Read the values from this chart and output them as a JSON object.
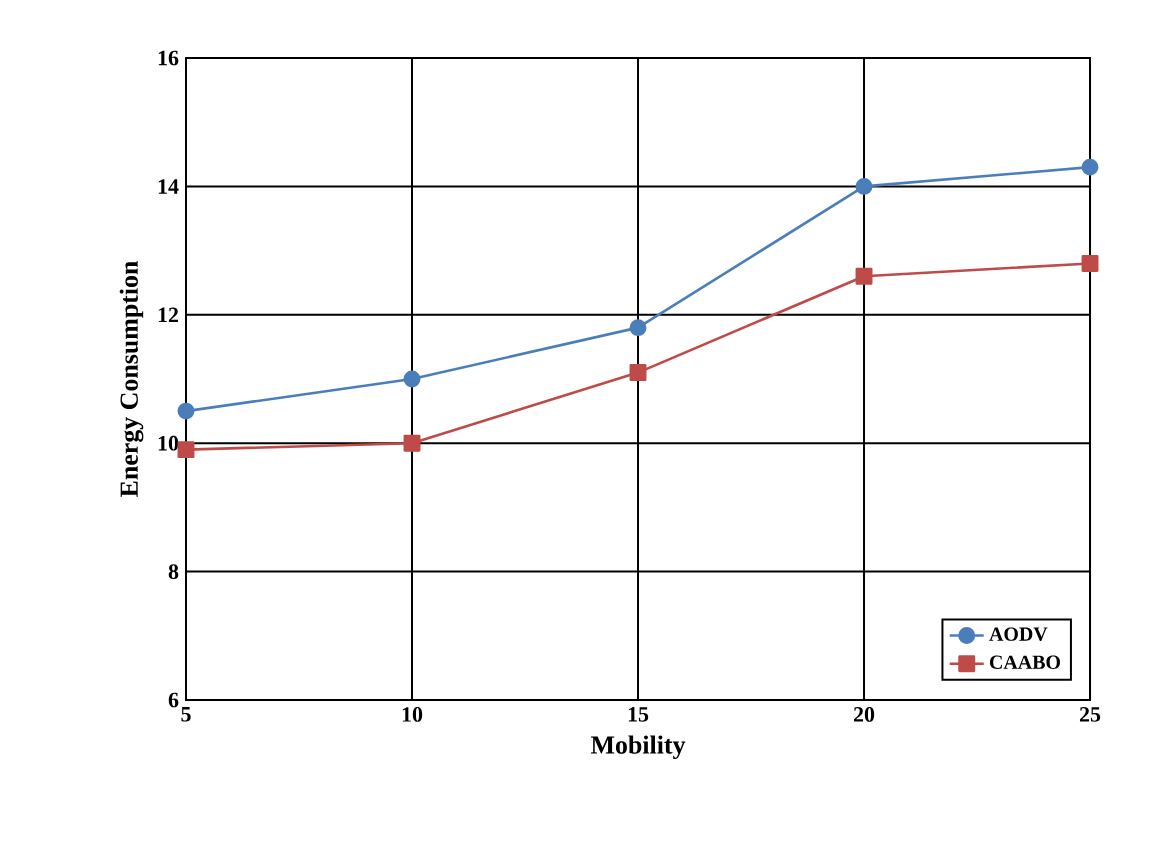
{
  "chart_data": {
    "type": "line",
    "xlabel": "Mobility",
    "ylabel": "Energy Consumption",
    "x": [
      5,
      10,
      15,
      20,
      25
    ],
    "series": [
      {
        "name": "AODV",
        "color": "#4a7ebb",
        "marker": "circle",
        "values": [
          10.5,
          11.0,
          11.8,
          14.0,
          14.3
        ]
      },
      {
        "name": "CAABO",
        "color": "#be4b48",
        "marker": "square",
        "values": [
          9.9,
          10.0,
          11.1,
          12.6,
          12.8
        ]
      }
    ],
    "xlim": [
      5,
      25
    ],
    "xticks": [
      5,
      10,
      15,
      20,
      25
    ],
    "ylim": [
      6,
      16
    ],
    "yticks": [
      6,
      8,
      10,
      12,
      14,
      16
    ],
    "grid": true,
    "legend": "bottom right",
    "line_style": "solid"
  }
}
